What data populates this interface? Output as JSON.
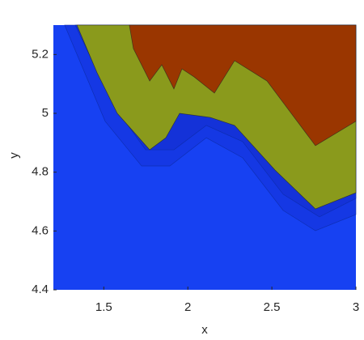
{
  "chart_data": {
    "type": "contourf",
    "xlabel": "x",
    "ylabel": "y",
    "xlim": [
      1.2,
      3
    ],
    "ylim": [
      4.4,
      5.3
    ],
    "xticks": [
      1.5,
      2,
      2.5,
      3
    ],
    "yticks": [
      4.4,
      4.6,
      4.8,
      5,
      5.2
    ],
    "background_color": "#1741f2",
    "series": [
      {
        "color": "#1538e4",
        "x": [
          1.267,
          1.508,
          1.725,
          1.893,
          2.11,
          2.326,
          2.567,
          2.759,
          3.0
        ],
        "y": [
          5.3,
          4.973,
          4.821,
          4.821,
          4.917,
          4.849,
          4.67,
          4.601,
          4.656
        ]
      },
      {
        "color": "#1432d8",
        "x": [
          1.33,
          1.556,
          1.749,
          1.917,
          2.11,
          2.326,
          2.567,
          2.783,
          3.0
        ],
        "y": [
          5.3,
          5.028,
          4.876,
          4.876,
          4.959,
          4.904,
          4.725,
          4.648,
          4.711
        ]
      },
      {
        "color": "#8a9a1c",
        "x": [
          1.34,
          1.46,
          1.58,
          1.773,
          1.869,
          1.951,
          2.134,
          2.278,
          2.519,
          2.759,
          3.0
        ],
        "y": [
          5.3,
          5.138,
          5.0,
          4.876,
          4.917,
          5.0,
          4.986,
          4.959,
          4.807,
          4.675,
          4.73
        ]
      },
      {
        "color": "#9a3600",
        "x": [
          1.652,
          1.676,
          1.773,
          1.845,
          1.917,
          1.965,
          2.037,
          2.158,
          2.278,
          2.471,
          2.759,
          3.0
        ],
        "y": [
          5.3,
          5.22,
          5.11,
          5.165,
          5.083,
          5.151,
          5.124,
          5.069,
          5.179,
          5.11,
          4.89,
          4.973
        ]
      }
    ]
  }
}
